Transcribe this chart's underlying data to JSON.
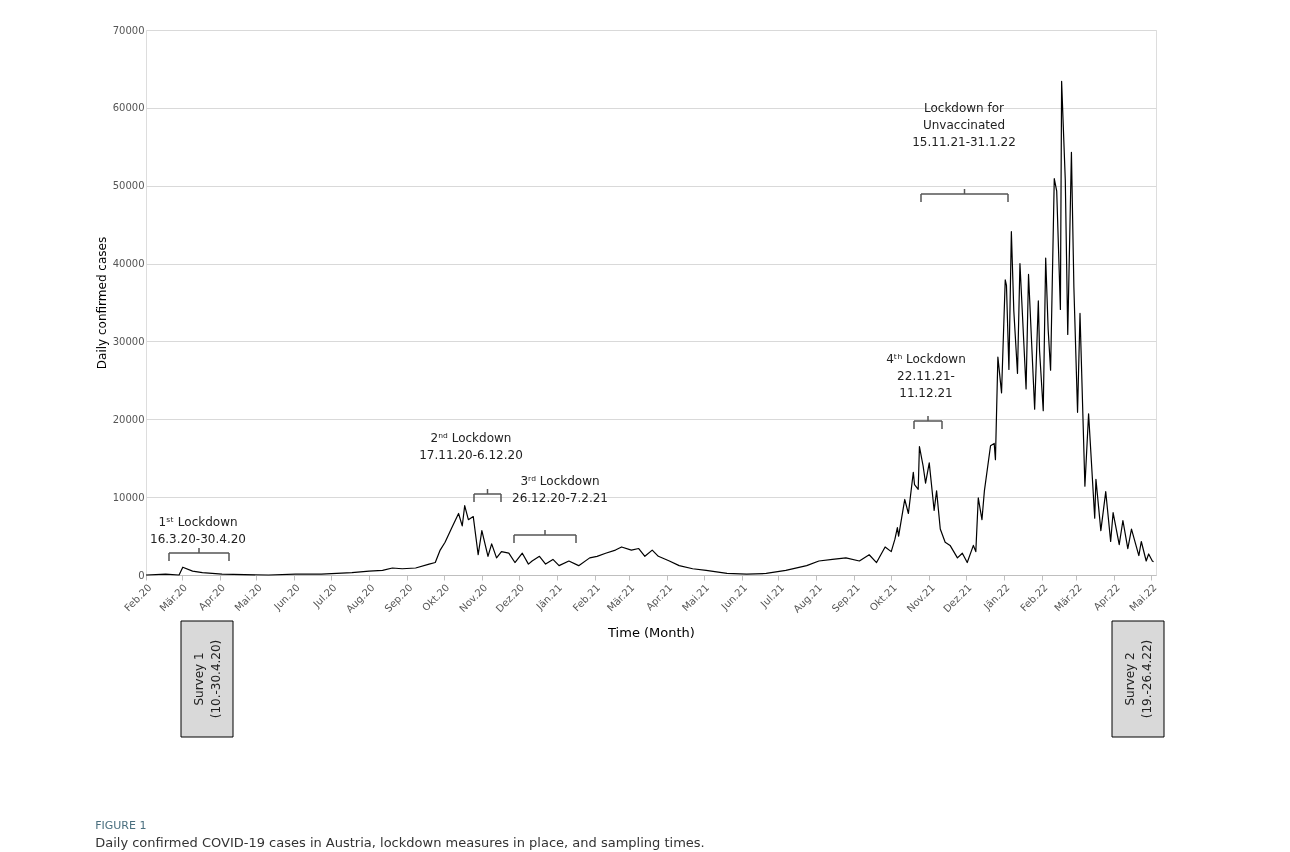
{
  "chart_data": {
    "type": "line",
    "title": "FIGURE 1",
    "subtitle": "Daily confirmed COVID-19 cases in Austria, lockdown measures in place, and sampling times.",
    "xlabel": "Time (Month)",
    "ylabel": "Daily confirmed cases",
    "x": [
      "2020-02-01",
      "2020-02-17",
      "2020-02-28",
      "2020-03-02",
      "2020-03-10",
      "2020-03-18",
      "2020-04-03",
      "2020-05-11",
      "2020-06-02",
      "2020-06-23",
      "2020-07-18",
      "2020-08-01",
      "2020-08-12",
      "2020-08-20",
      "2020-08-28",
      "2020-09-08",
      "2020-09-19",
      "2020-09-24",
      "2020-09-28",
      "2020-10-02",
      "2020-10-07",
      "2020-10-13",
      "2020-10-16",
      "2020-10-18",
      "2020-10-21",
      "2020-10-25",
      "2020-10-29",
      "2020-11-01",
      "2020-11-06",
      "2020-11-09",
      "2020-11-13",
      "2020-11-17",
      "2020-11-23",
      "2020-11-28",
      "2020-12-04",
      "2020-12-09",
      "2020-12-12",
      "2020-12-18",
      "2020-12-23",
      "2020-12-29",
      "2021-01-03",
      "2021-01-11",
      "2021-01-19",
      "2021-01-28",
      "2021-02-03",
      "2021-02-10",
      "2021-02-18",
      "2021-02-23",
      "2021-03-03",
      "2021-03-09",
      "2021-03-14",
      "2021-03-20",
      "2021-03-25",
      "2021-04-03",
      "2021-04-11",
      "2021-04-22",
      "2021-05-03",
      "2021-05-20",
      "2021-06-05",
      "2021-06-21",
      "2021-07-07",
      "2021-07-24",
      "2021-08-03",
      "2021-08-14",
      "2021-08-25",
      "2021-09-05",
      "2021-09-13",
      "2021-09-19",
      "2021-09-26",
      "2021-10-01",
      "2021-10-04",
      "2021-10-06",
      "2021-10-07",
      "2021-10-12",
      "2021-10-15",
      "2021-10-19",
      "2021-10-20",
      "2021-10-23",
      "2021-10-24",
      "2021-10-27",
      "2021-10-29",
      "2021-11-01",
      "2021-11-05",
      "2021-11-07",
      "2021-11-10",
      "2021-11-14",
      "2021-11-18",
      "2021-11-24",
      "2021-11-28",
      "2021-12-02",
      "2021-12-07",
      "2021-12-09",
      "2021-12-11",
      "2021-12-14",
      "2021-12-16",
      "2021-12-21",
      "2021-12-24",
      "2021-12-25",
      "2021-12-27",
      "2021-12-30",
      "2022-01-02",
      "2022-01-03",
      "2022-01-05",
      "2022-01-07",
      "2022-01-09",
      "2022-01-12",
      "2022-01-14",
      "2022-01-19",
      "2022-01-21",
      "2022-01-26",
      "2022-01-29",
      "2022-01-30",
      "2022-02-02",
      "2022-02-04",
      "2022-02-06",
      "2022-02-08",
      "2022-02-11",
      "2022-02-13",
      "2022-02-16",
      "2022-02-17",
      "2022-02-20",
      "2022-02-22",
      "2022-02-25",
      "2022-02-27",
      "2022-03-02",
      "2022-03-04",
      "2022-03-08",
      "2022-03-11",
      "2022-03-16",
      "2022-03-17",
      "2022-03-21",
      "2022-03-25",
      "2022-03-29",
      "2022-03-31",
      "2022-04-05",
      "2022-04-08",
      "2022-04-12",
      "2022-04-15",
      "2022-04-21",
      "2022-04-23",
      "2022-04-27",
      "2022-04-29",
      "2022-05-02",
      "2022-05-03"
    ],
    "series": [
      {
        "color": "#000000",
        "values": [
          0,
          100,
          0,
          1000,
          500,
          300,
          100,
          0,
          100,
          100,
          300,
          500,
          600,
          900,
          800,
          900,
          1400,
          1600,
          3200,
          4200,
          5900,
          7900,
          6300,
          8900,
          7100,
          7500,
          2600,
          5700,
          2400,
          4000,
          2200,
          3000,
          2800,
          1600,
          2800,
          1400,
          1800,
          2400,
          1400,
          2000,
          1200,
          1800,
          1200,
          2200,
          2400,
          2800,
          3200,
          3600,
          3200,
          3400,
          2400,
          3200,
          2400,
          1800,
          1200,
          800,
          600,
          200,
          100,
          200,
          600,
          1200,
          1800,
          2000,
          2200,
          1800,
          2600,
          1600,
          3600,
          3000,
          4600,
          6100,
          5000,
          9700,
          7900,
          13200,
          11600,
          11000,
          16500,
          14000,
          11800,
          14400,
          8300,
          10800,
          5900,
          4200,
          3800,
          2200,
          2800,
          1600,
          3800,
          3000,
          9900,
          7100,
          10800,
          16600,
          16900,
          14800,
          28000,
          23400,
          37900,
          37200,
          26400,
          44100,
          33900,
          25900,
          40000,
          23900,
          38600,
          21300,
          35200,
          28800,
          21100,
          40700,
          31600,
          26300,
          50900,
          49300,
          34100,
          63400,
          50700,
          30900,
          54300,
          37000,
          20900,
          33600,
          11400,
          20700,
          7300,
          12300,
          5700,
          10700,
          4300,
          8000,
          3900,
          7000,
          3400,
          5900,
          2500,
          4300,
          1800,
          2700,
          1800,
          1700
        ]
      }
    ],
    "xlim": [
      "2020-02-01",
      "2022-05-05"
    ],
    "xticks": [
      {
        "value": "2020-02-01",
        "label": "Feb.20"
      },
      {
        "value": "2020-03-01",
        "label": "Mär.20"
      },
      {
        "value": "2020-04-01",
        "label": "Apr.20"
      },
      {
        "value": "2020-05-01",
        "label": "Mai.20"
      },
      {
        "value": "2020-06-01",
        "label": "Jun.20"
      },
      {
        "value": "2020-07-01",
        "label": "Jul.20"
      },
      {
        "value": "2020-08-01",
        "label": "Aug.20"
      },
      {
        "value": "2020-09-01",
        "label": "Sep.20"
      },
      {
        "value": "2020-10-01",
        "label": "Okt.20"
      },
      {
        "value": "2020-11-01",
        "label": "Nov.20"
      },
      {
        "value": "2020-12-01",
        "label": "Dez.20"
      },
      {
        "value": "2021-01-01",
        "label": "Jän.21"
      },
      {
        "value": "2021-02-01",
        "label": "Feb.21"
      },
      {
        "value": "2021-03-01",
        "label": "Mär.21"
      },
      {
        "value": "2021-04-01",
        "label": "Apr.21"
      },
      {
        "value": "2021-05-01",
        "label": "Mai.21"
      },
      {
        "value": "2021-06-01",
        "label": "Jun.21"
      },
      {
        "value": "2021-07-01",
        "label": "Jul.21"
      },
      {
        "value": "2021-08-01",
        "label": "Aug.21"
      },
      {
        "value": "2021-09-01",
        "label": "Sep.21"
      },
      {
        "value": "2021-10-01",
        "label": "Okt.21"
      },
      {
        "value": "2021-11-01",
        "label": "Nov.21"
      },
      {
        "value": "2021-12-01",
        "label": "Dez.21"
      },
      {
        "value": "2022-01-01",
        "label": "Jän.22"
      },
      {
        "value": "2022-02-01",
        "label": "Feb.22"
      },
      {
        "value": "2022-03-01",
        "label": "Mär.22"
      },
      {
        "value": "2022-04-01",
        "label": "Apr.22"
      },
      {
        "value": "2022-05-01",
        "label": "Mai.22"
      }
    ],
    "ylim": [
      0,
      70000
    ],
    "yticks": [
      0,
      10000,
      20000,
      30000,
      40000,
      50000,
      60000,
      70000
    ],
    "grid": "y",
    "annotations": [
      "1ˢᵗ Lockdown\n16.3.20-30.4.20",
      "2ⁿᵈ Lockdown\n17.11.20-6.12.20",
      "3ʳᵈ Lockdown\n26.12.20-7.2.21",
      "4ᵗʰ Lockdown\n22.11.21-\n11.12.21",
      "Lockdown for\nUnvaccinated\n15.11.21-31.1.22",
      "Survey 1\n(10.-30.4.20)",
      "Survey 2\n(19.-26.4.22)"
    ]
  }
}
